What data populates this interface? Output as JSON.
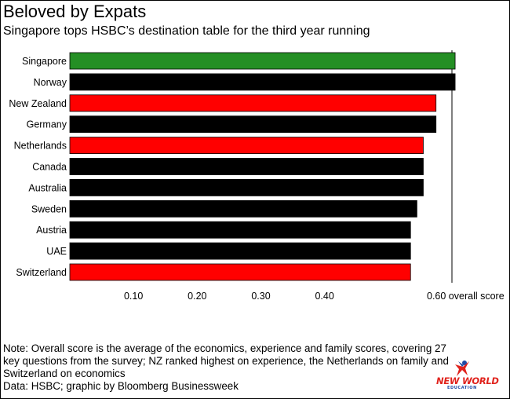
{
  "header": {
    "title": "Beloved by Expats",
    "subtitle": "Singapore tops HSBC’s destination table for the third year running"
  },
  "chart_data": {
    "type": "bar",
    "orientation": "horizontal",
    "categories": [
      "Singapore",
      "Norway",
      "New Zealand",
      "Germany",
      "Netherlands",
      "Canada",
      "Australia",
      "Sweden",
      "Austria",
      "UAE",
      "Switzerland"
    ],
    "values": [
      0.605,
      0.605,
      0.575,
      0.575,
      0.555,
      0.555,
      0.555,
      0.545,
      0.535,
      0.535,
      0.535
    ],
    "colors": [
      "#248f24",
      "#000000",
      "#ff0000",
      "#000000",
      "#ff0000",
      "#000000",
      "#000000",
      "#000000",
      "#000000",
      "#000000",
      "#ff0000"
    ],
    "xticks": [
      {
        "value": 0.1,
        "label": "0.10"
      },
      {
        "value": 0.2,
        "label": "0.20"
      },
      {
        "value": 0.3,
        "label": "0.30"
      },
      {
        "value": 0.4,
        "label": "0.40"
      },
      {
        "value": 0.6,
        "label": "0.60 overall score"
      }
    ],
    "xlim": [
      0,
      0.6
    ],
    "reference_line": 0.6,
    "grid": false
  },
  "footer": {
    "note": "Note: Overall score is the average of the economics, experience and family scores, covering 27 key questions from the survey; NZ ranked highest on experience, the Netherlands on family and Switzerland on economics",
    "source": "Data: HSBC; graphic by Bloomberg Businessweek"
  },
  "logo": {
    "main_text": "NEW WORLD",
    "sub_text": "EDUCATION",
    "colors": {
      "primary": "#e0231d",
      "secondary": "#1f4ba5"
    }
  }
}
